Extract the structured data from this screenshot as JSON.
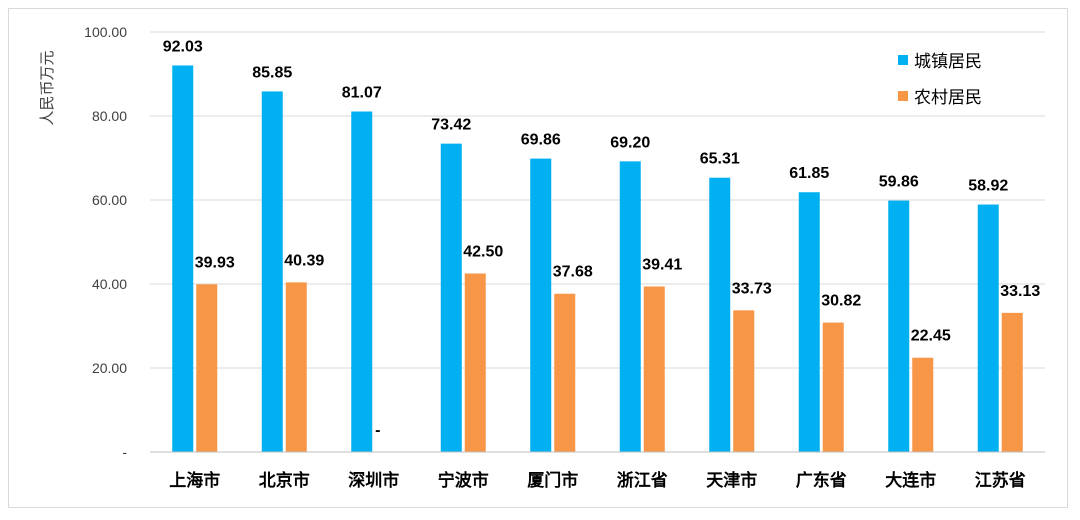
{
  "chart_data": {
    "type": "bar",
    "ylabel": "人民币万元",
    "ylim": [
      0,
      100
    ],
    "yticks": [
      "-",
      "20.00",
      "40.00",
      "60.00",
      "80.00",
      "100.00"
    ],
    "grid": true,
    "legend_position": "top-right",
    "categories": [
      "上海市",
      "北京市",
      "深圳市",
      "宁波市",
      "厦门市",
      "浙江省",
      "天津市",
      "广东省",
      "大连市",
      "江苏省"
    ],
    "series": [
      {
        "name": "城镇居民",
        "color": "#00b0f0",
        "values": [
          92.03,
          85.85,
          81.07,
          73.42,
          69.86,
          69.2,
          65.31,
          61.85,
          59.86,
          58.92
        ],
        "labels": [
          "92.03",
          "85.85",
          "81.07",
          "73.42",
          "69.86",
          "69.20",
          "65.31",
          "61.85",
          "59.86",
          "58.92"
        ]
      },
      {
        "name": "农村居民",
        "color": "#f79646",
        "values": [
          39.93,
          40.39,
          0,
          42.5,
          37.68,
          39.41,
          33.73,
          30.82,
          22.45,
          33.13
        ],
        "labels": [
          "39.93",
          "40.39",
          "-",
          "42.50",
          "37.68",
          "39.41",
          "33.73",
          "30.82",
          "22.45",
          "33.13"
        ]
      }
    ]
  }
}
